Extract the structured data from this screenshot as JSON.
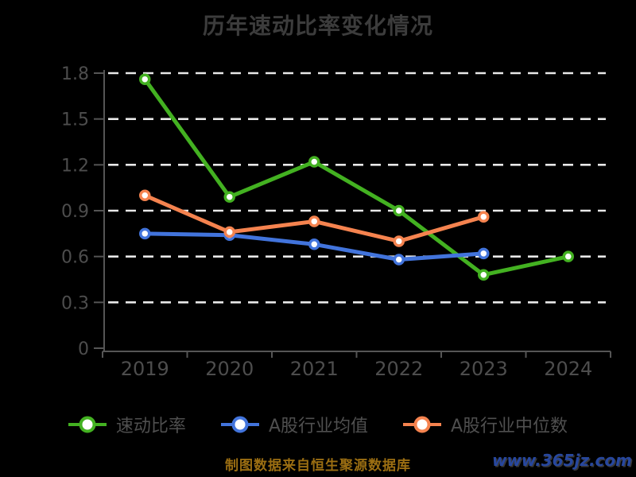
{
  "title": "历年速动比率变化情况",
  "chart_data": {
    "type": "line",
    "categories": [
      "2019",
      "2020",
      "2021",
      "2022",
      "2023",
      "2024"
    ],
    "series": [
      {
        "name": "速动比率",
        "color": "#43b121",
        "values": [
          1.76,
          0.99,
          1.22,
          0.9,
          0.48,
          0.6
        ]
      },
      {
        "name": "A股行业均值",
        "color": "#4274dc",
        "values": [
          0.75,
          0.74,
          0.68,
          0.58,
          0.62,
          null
        ]
      },
      {
        "name": "A股行业中位数",
        "color": "#f5834f",
        "values": [
          1.0,
          0.76,
          0.83,
          0.7,
          0.86,
          null
        ]
      }
    ],
    "ylim": [
      0,
      1.8
    ],
    "yticks": [
      0,
      0.3,
      0.6,
      0.9,
      1.2,
      1.5,
      1.8
    ],
    "ytick_labels": [
      "0",
      "0.3",
      "0.6",
      "0.9",
      "1.2",
      "1.5",
      "1.8"
    ],
    "grid": "horizontal-dashed-white",
    "legend_position": "bottom",
    "marker": "white-filled-circle"
  },
  "colors": {
    "background": "#000000",
    "title_text": "#3c3c3c",
    "axis_line": "#555555",
    "axis_label": "#4d4d4d",
    "gridline": "#e8e8e8",
    "legend_label": "#4f4f4f",
    "footer_text": "#9b6e12",
    "watermark_text": "#27479e"
  },
  "footer": {
    "source_note": "制图数据来自恒生聚源数据库",
    "watermark": "www.365jz.com"
  }
}
